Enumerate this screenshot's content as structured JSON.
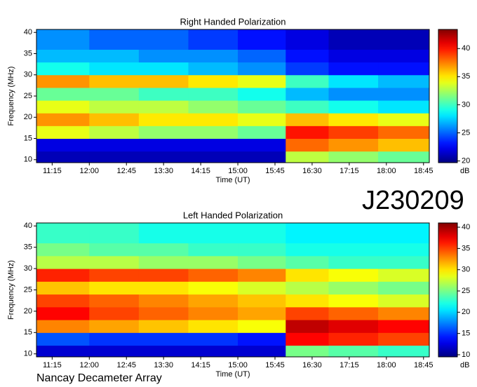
{
  "chart_data": [
    {
      "type": "heatmap",
      "title": "Right Handed Polarization",
      "x_label": "Time (UT)",
      "y_label": "Frequency (MHz)",
      "colorbar_label": "dB",
      "colormap": "jet",
      "xlim": [
        656,
        1132
      ],
      "xticks": [
        {
          "value": 675,
          "label": "11:15"
        },
        {
          "value": 720,
          "label": "12:00"
        },
        {
          "value": 765,
          "label": "12:45"
        },
        {
          "value": 810,
          "label": "13:30"
        },
        {
          "value": 855,
          "label": "14:15"
        },
        {
          "value": 900,
          "label": "15:00"
        },
        {
          "value": 945,
          "label": "15:45"
        },
        {
          "value": 990,
          "label": "16:30"
        },
        {
          "value": 1035,
          "label": "17:15"
        },
        {
          "value": 1080,
          "label": "18:00"
        },
        {
          "value": 1125,
          "label": "18:45"
        }
      ],
      "ylim": [
        9.3,
        40.7
      ],
      "yticks": [
        10,
        15,
        20,
        25,
        30,
        35,
        40
      ],
      "zlim": [
        19.7,
        43.4
      ],
      "zticks": [
        20,
        25,
        30,
        35,
        40
      ],
      "xbins": [
        656,
        720,
        780,
        840,
        900,
        958,
        1010,
        1070,
        1132
      ],
      "ybins": [
        9.3,
        12,
        15,
        18,
        21,
        24,
        27,
        30,
        33,
        36,
        40.7
      ],
      "z": [
        [
          21,
          21,
          21,
          21,
          21,
          33,
          32,
          31
        ],
        [
          22,
          22,
          22,
          22,
          22,
          38,
          37,
          36
        ],
        [
          34,
          33,
          32,
          32,
          31,
          40,
          39,
          38
        ],
        [
          37,
          36,
          35,
          35,
          34,
          36,
          35,
          34
        ],
        [
          34,
          33,
          33,
          32,
          31,
          30,
          29,
          28
        ],
        [
          31,
          31,
          30,
          30,
          29,
          27,
          26,
          26
        ],
        [
          37,
          36,
          36,
          35,
          34,
          30,
          28,
          27
        ],
        [
          29,
          28,
          28,
          27,
          26,
          24,
          23,
          23
        ],
        [
          27,
          27,
          26,
          26,
          25,
          23,
          22,
          22
        ],
        [
          26,
          25,
          25,
          24,
          23,
          22,
          21,
          21
        ]
      ]
    },
    {
      "type": "heatmap",
      "title": "Left Handed Polarization",
      "x_label": "Time (UT)",
      "y_label": "Frequency (MHz)",
      "colorbar_label": "dB",
      "colormap": "jet",
      "xlim": [
        656,
        1132
      ],
      "xticks": [
        {
          "value": 675,
          "label": "11:15"
        },
        {
          "value": 720,
          "label": "12:00"
        },
        {
          "value": 765,
          "label": "12:45"
        },
        {
          "value": 810,
          "label": "13:30"
        },
        {
          "value": 855,
          "label": "14:15"
        },
        {
          "value": 900,
          "label": "15:00"
        },
        {
          "value": 945,
          "label": "15:45"
        },
        {
          "value": 990,
          "label": "16:30"
        },
        {
          "value": 1035,
          "label": "17:15"
        },
        {
          "value": 1080,
          "label": "18:00"
        },
        {
          "value": 1125,
          "label": "18:45"
        }
      ],
      "ylim": [
        9.3,
        40.7
      ],
      "yticks": [
        10,
        15,
        20,
        25,
        30,
        35,
        40
      ],
      "zlim": [
        9.5,
        41
      ],
      "zticks": [
        10,
        15,
        20,
        25,
        30,
        35,
        40
      ],
      "xbins": [
        656,
        720,
        780,
        840,
        900,
        958,
        1010,
        1070,
        1132
      ],
      "ybins": [
        9.3,
        12,
        15,
        18,
        21,
        24,
        27,
        30,
        33,
        36,
        40.7
      ],
      "z": [
        [
          12,
          12,
          12,
          12,
          12,
          25,
          24,
          23
        ],
        [
          16,
          15,
          15,
          15,
          14,
          37,
          36,
          35
        ],
        [
          33,
          32,
          31,
          30,
          29,
          39,
          38,
          37
        ],
        [
          37,
          35,
          34,
          33,
          32,
          35,
          34,
          33
        ],
        [
          35,
          34,
          33,
          32,
          31,
          30,
          29,
          28
        ],
        [
          31,
          30,
          30,
          29,
          28,
          27,
          26,
          25
        ],
        [
          36,
          35,
          35,
          34,
          33,
          30,
          29,
          28
        ],
        [
          27,
          27,
          26,
          26,
          25,
          24,
          23,
          23
        ],
        [
          25,
          24,
          24,
          23,
          23,
          22,
          22,
          22
        ],
        [
          23,
          23,
          22,
          22,
          22,
          21,
          21,
          21
        ]
      ]
    }
  ],
  "observation_id": "J230209",
  "footer": "Nancay Decameter Array"
}
